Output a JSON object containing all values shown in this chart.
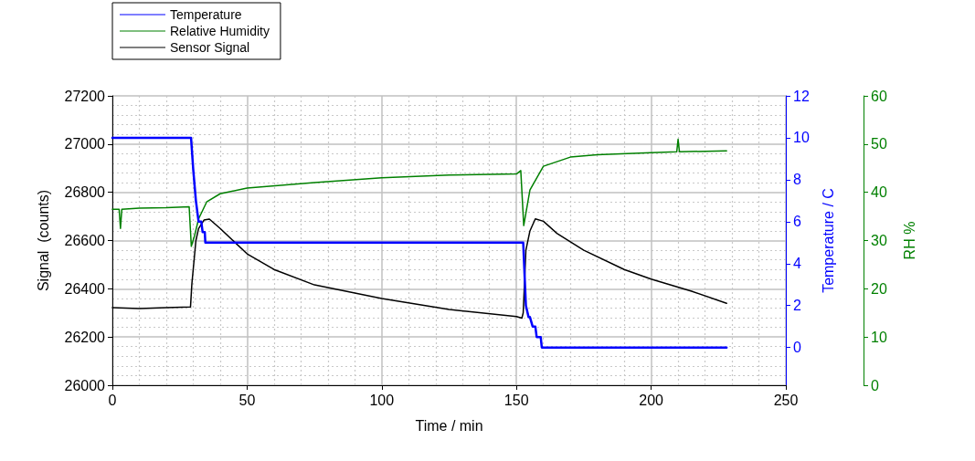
{
  "chart_data": {
    "type": "line",
    "xlabel": "Time / min",
    "ylabel": "Signal  (counts)",
    "y2label": "Temperature / C",
    "y3label": "RH %",
    "xlim": [
      0,
      250
    ],
    "xticks": [
      0,
      50,
      100,
      150,
      200,
      250
    ],
    "ylim": [
      26000,
      27200
    ],
    "yticks": [
      26000,
      26200,
      26400,
      26600,
      26800,
      27000,
      27200
    ],
    "y2lim": [
      -1.8,
      12
    ],
    "y2ticks": [
      0,
      2,
      4,
      6,
      8,
      10,
      12
    ],
    "y3lim": [
      0,
      60
    ],
    "y3ticks": [
      0,
      10,
      20,
      30,
      40,
      50,
      60
    ],
    "grid": true,
    "legend": "top left",
    "marker": "none",
    "line_style": "solid",
    "series": [
      {
        "name": "Temperature",
        "color": "#0000ff",
        "axis": "y2",
        "x": [
          0,
          29.2,
          30,
          31,
          32,
          33,
          33.5,
          34.3,
          34.5,
          152.5,
          153,
          153.5,
          154.5,
          155,
          156,
          157,
          157.5,
          159,
          159.4,
          228
        ],
        "values": [
          10,
          10,
          8.5,
          7,
          6,
          6,
          5.5,
          5.5,
          5,
          5,
          3.5,
          2,
          1.45,
          1.45,
          1,
          1,
          0.5,
          0.5,
          0,
          0
        ]
      },
      {
        "name": "Relative Humidity",
        "color": "#008000",
        "axis": "y3",
        "x": [
          0,
          2.5,
          3,
          3.5,
          10,
          20,
          28.5,
          29.3,
          30.5,
          32,
          35,
          40,
          50,
          75,
          100,
          125,
          150,
          151.6,
          152.7,
          155,
          160,
          170,
          180,
          200,
          209.5,
          210,
          210.5,
          228
        ],
        "values": [
          36.5,
          36.5,
          32.5,
          36.5,
          36.7,
          36.8,
          37,
          28.8,
          31,
          34.5,
          38,
          39.7,
          40.9,
          42,
          43,
          43.6,
          43.8,
          44.5,
          33.1,
          40.5,
          45.4,
          47.3,
          47.8,
          48.2,
          48.4,
          51,
          48.4,
          48.6
        ]
      },
      {
        "name": "Sensor Signal",
        "color": "#000000",
        "axis": "y",
        "x": [
          0,
          10,
          20,
          29,
          29.5,
          31,
          32,
          34,
          36,
          40,
          50,
          60,
          75,
          100,
          125,
          150,
          152,
          152.5,
          153.5,
          155,
          157,
          160,
          165,
          175,
          190,
          200,
          215,
          228
        ],
        "values": [
          26322,
          26318,
          26322,
          26325,
          26420,
          26600,
          26650,
          26685,
          26689,
          26650,
          26545,
          26480,
          26416,
          26360,
          26314,
          26285,
          26278,
          26300,
          26560,
          26640,
          26690,
          26680,
          26630,
          26560,
          26480,
          26440,
          26390,
          26340
        ]
      }
    ]
  }
}
